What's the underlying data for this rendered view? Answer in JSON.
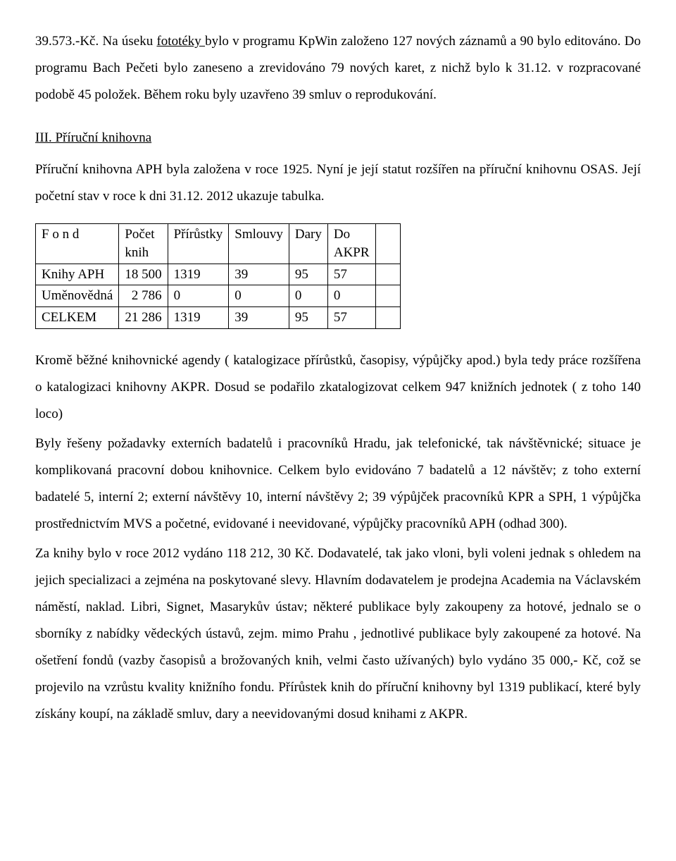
{
  "para1_a": "39.573.-Kč. Na úseku ",
  "para1_link": "fototéky ",
  "para1_b": "bylo v programu KpWin založeno 127 nových záznamů a 90 bylo editováno. Do programu Bach Pečeti bylo zaneseno a zrevidováno 79 nových karet, z nichž bylo k 31.12. v rozpracované podobě 45 položek. Během roku byly uzavřeno 39 smluv o reprodukování.",
  "heading3": "III. Příruční knihovna",
  "para2": "Příruční knihovna APH byla založena v roce 1925. Nyní je její statut rozšířen na příruční knihovnu OSAS. Její početní stav v roce k dni 31.12. 2012 ukazuje tabulka.",
  "table": {
    "headers": {
      "c1a": "F o n d",
      "c2a": "Počet",
      "c2b": "knih",
      "c3": "Přírůstky",
      "c4": "Smlouvy",
      "c5": "Dary",
      "c6a": "Do",
      "c6b": "AKPR"
    },
    "rows": [
      {
        "c1": "Knihy APH",
        "c2": "18 500",
        "c3": "1319",
        "c4": "39",
        "c5": "95",
        "c6": "57"
      },
      {
        "c1": "Uměnovědná",
        "c2": "  2 786",
        "c3": "0",
        "c4": "0",
        "c5": "0",
        "c6": "0"
      },
      {
        "c1": "CELKEM",
        "c2": "21 286",
        "c3": "1319",
        "c4": "39",
        "c5": "95",
        "c6": "57"
      }
    ]
  },
  "para3": "Kromě běžné knihovnické agendy ( katalogizace  přírůstků, časopisy, výpůjčky apod.) byla tedy práce rozšířena o katalogizaci knihovny AKPR. Dosud se podařilo zkatalogizovat celkem 947 knižních jednotek ( z toho 140 loco)",
  "para4": "Byly řešeny požadavky externích badatelů i pracovníků Hradu, jak telefonické, tak návštěvnické; situace je komplikovaná pracovní dobou knihovnice. Celkem bylo evidováno  7 badatelů a  12 návštěv; z toho externí badatelé 5, interní 2;  externí návštěvy 10,  interní  návštěvy 2;  39 výpůjček pracovníků KPR a SPH, 1 výpůjčka prostřednictvím MVS a početné, evidované i neevidované, výpůjčky pracovníků APH  (odhad 300).",
  "para5": "Za knihy bylo v roce 2012 vydáno  118 212, 30 Kč. Dodavatelé, tak jako vloni, byli voleni jednak s ohledem na jejich specializaci a zejména na poskytované slevy. Hlavním dodavatelem je prodejna Academia na Václavském náměstí, naklad. Libri, Signet, Masarykův ústav; některé publikace byly zakoupeny za hotové, jednalo se o sborníky z nabídky vědeckých ústavů, zejm. mimo Prahu , jednotlivé publikace byly zakoupené za hotové. Na ošetření fondů (vazby časopisů a brožovaných knih, velmi často užívaných) bylo vydáno 35 000,- Kč, což se projevilo na vzrůstu kvality knižního fondu. Přírůstek knih do příruční knihovny byl 1319 publikací, které byly získány koupí, na základě smluv, dary a neevidovanými dosud knihami z AKPR."
}
